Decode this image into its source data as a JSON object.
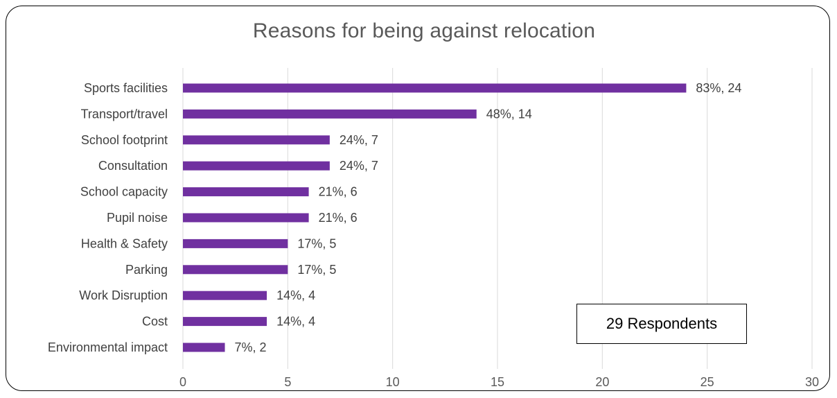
{
  "chart_data": {
    "type": "bar",
    "orientation": "horizontal",
    "title": "Reasons for being against relocation",
    "categories": [
      "Sports facilities",
      "Transport/travel",
      "School footprint",
      "Consultation",
      "School capacity",
      "Pupil noise",
      "Health & Safety",
      "Parking",
      "Work Disruption",
      "Cost",
      "Environmental impact"
    ],
    "values": [
      24,
      14,
      7,
      7,
      6,
      6,
      5,
      5,
      4,
      4,
      2
    ],
    "data_labels": [
      "83%, 24",
      "48%, 14",
      "24%, 7",
      "24%, 7",
      "21%, 6",
      "21%, 6",
      "17%, 5",
      "17%, 5",
      "14%, 4",
      "14%, 4",
      "7%, 2"
    ],
    "xlim": [
      0,
      30
    ],
    "xticks": [
      0,
      5,
      10,
      15,
      20,
      25,
      30
    ],
    "grid": true,
    "bar_color": "#7030A0",
    "annotation": "29 Respondents"
  }
}
